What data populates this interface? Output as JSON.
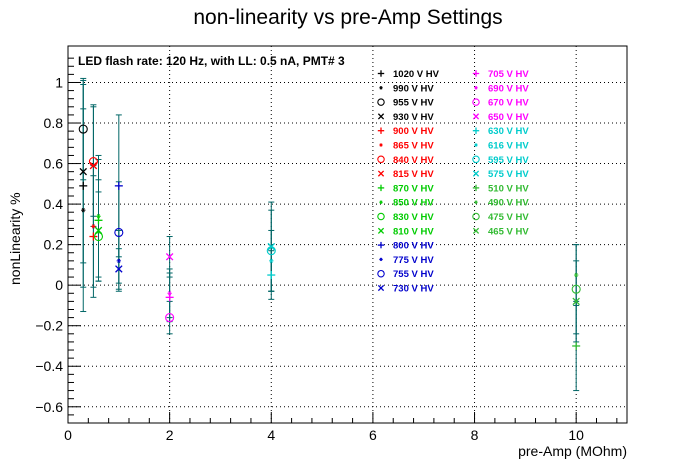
{
  "chart_data": {
    "type": "scatter",
    "title": "non-linearity vs pre-Amp Settings",
    "xlabel": "pre-Amp (MOhm)",
    "ylabel": "nonLinearity %",
    "xlim": [
      0,
      11
    ],
    "ylim": [
      -0.68,
      1.18
    ],
    "x_ticks": [
      0,
      2,
      4,
      6,
      8,
      10
    ],
    "y_ticks": [
      -0.6,
      -0.4,
      -0.2,
      0,
      0.2,
      0.4,
      0.6,
      0.8,
      1
    ],
    "x_tick_labels": [
      "0",
      "2",
      "4",
      "6",
      "8",
      "10"
    ],
    "y_tick_labels": [
      "−0.6",
      "−0.4",
      "−0.2",
      "0",
      "0.2",
      "0.4",
      "0.6",
      "0.8",
      "1"
    ],
    "grid": true,
    "annotation": "LED flash rate: 120 Hz, with LL: 0.5 nA, PMT# 3",
    "legend_position": "top-right",
    "colors": {
      "black": "#000000",
      "red": "#ff0000",
      "green": "#00cc00",
      "blue": "#0000cc",
      "magenta": "#ff00ff",
      "cyan": "#00cccc",
      "lightgreen": "#33bb33",
      "error_bar": "#006666"
    },
    "series": [
      {
        "name": "1020 V HV",
        "color": "#000000",
        "marker": "plus"
      },
      {
        "name": "990 V HV",
        "color": "#000000",
        "marker": "star"
      },
      {
        "name": "955 V HV",
        "color": "#000000",
        "marker": "circle"
      },
      {
        "name": "930 V HV",
        "color": "#000000",
        "marker": "cross"
      },
      {
        "name": "900 V HV",
        "color": "#ff0000",
        "marker": "plus"
      },
      {
        "name": "865 V HV",
        "color": "#ff0000",
        "marker": "star"
      },
      {
        "name": "840 V HV",
        "color": "#ff0000",
        "marker": "circle"
      },
      {
        "name": "815 V HV",
        "color": "#ff0000",
        "marker": "cross"
      },
      {
        "name": "870 V HV",
        "color": "#00cc00",
        "marker": "plus"
      },
      {
        "name": "850 V HV",
        "color": "#00cc00",
        "marker": "star"
      },
      {
        "name": "830 V HV",
        "color": "#00cc00",
        "marker": "circle"
      },
      {
        "name": "810 V HV",
        "color": "#00cc00",
        "marker": "cross"
      },
      {
        "name": "800 V HV",
        "color": "#0000cc",
        "marker": "plus"
      },
      {
        "name": "775 V HV",
        "color": "#0000cc",
        "marker": "star"
      },
      {
        "name": "755 V HV",
        "color": "#0000cc",
        "marker": "circle"
      },
      {
        "name": "730 V HV",
        "color": "#0000cc",
        "marker": "cross"
      },
      {
        "name": "705 V HV",
        "color": "#ff00ff",
        "marker": "plus"
      },
      {
        "name": "690 V HV",
        "color": "#ff00ff",
        "marker": "star"
      },
      {
        "name": "670 V HV",
        "color": "#ff00ff",
        "marker": "circle"
      },
      {
        "name": "650 V HV",
        "color": "#ff00ff",
        "marker": "cross"
      },
      {
        "name": "630 V HV",
        "color": "#00cccc",
        "marker": "plus"
      },
      {
        "name": "616 V HV",
        "color": "#00cccc",
        "marker": "star"
      },
      {
        "name": "595 V HV",
        "color": "#00cccc",
        "marker": "circle"
      },
      {
        "name": "575 V HV",
        "color": "#00cccc",
        "marker": "cross"
      },
      {
        "name": "510 V HV",
        "color": "#33bb33",
        "marker": "plus"
      },
      {
        "name": "490 V HV",
        "color": "#33bb33",
        "marker": "star"
      },
      {
        "name": "475 V HV",
        "color": "#33bb33",
        "marker": "circle"
      },
      {
        "name": "465 V HV",
        "color": "#33bb33",
        "marker": "cross"
      }
    ],
    "points": [
      {
        "series": "1020 V HV",
        "x": 0.3,
        "y": 0.49,
        "err": 0.5
      },
      {
        "series": "990 V HV",
        "x": 0.3,
        "y": 0.37,
        "err": 0.5
      },
      {
        "series": "955 V HV",
        "x": 0.3,
        "y": 0.77,
        "err": 0.25
      },
      {
        "series": "930 V HV",
        "x": 0.3,
        "y": 0.56,
        "err": 0.45
      },
      {
        "series": "900 V HV",
        "x": 0.5,
        "y": 0.24,
        "err": 0.3
      },
      {
        "series": "865 V HV",
        "x": 0.5,
        "y": 0.29,
        "err": 0.3
      },
      {
        "series": "840 V HV",
        "x": 0.5,
        "y": 0.61,
        "err": 0.27
      },
      {
        "series": "815 V HV",
        "x": 0.5,
        "y": 0.59,
        "err": 0.3
      },
      {
        "series": "870 V HV",
        "x": 0.6,
        "y": 0.32,
        "err": 0.3
      },
      {
        "series": "850 V HV",
        "x": 0.6,
        "y": 0.34,
        "err": 0.3
      },
      {
        "series": "830 V HV",
        "x": 0.6,
        "y": 0.24,
        "err": 0.22
      },
      {
        "series": "810 V HV",
        "x": 0.6,
        "y": 0.27,
        "err": 0.25
      },
      {
        "series": "800 V HV",
        "x": 1.0,
        "y": 0.49,
        "err": 0.35
      },
      {
        "series": "775 V HV",
        "x": 1.0,
        "y": 0.12,
        "err": 0.15
      },
      {
        "series": "755 V HV",
        "x": 1.0,
        "y": 0.26,
        "err": 0.25
      },
      {
        "series": "730 V HV",
        "x": 1.0,
        "y": 0.08,
        "err": 0.1
      },
      {
        "series": "705 V HV",
        "x": 2.0,
        "y": -0.06,
        "err": 0.12
      },
      {
        "series": "690 V HV",
        "x": 2.0,
        "y": -0.04,
        "err": 0.12
      },
      {
        "series": "670 V HV",
        "x": 2.0,
        "y": -0.16,
        "err": 0.08
      },
      {
        "series": "650 V HV",
        "x": 2.0,
        "y": 0.14,
        "err": 0.1
      },
      {
        "series": "630 V HV",
        "x": 4.0,
        "y": 0.05,
        "err": 0.12
      },
      {
        "series": "616 V HV",
        "x": 4.0,
        "y": 0.12,
        "err": 0.15
      },
      {
        "series": "595 V HV",
        "x": 4.0,
        "y": 0.17,
        "err": 0.2
      },
      {
        "series": "575 V HV",
        "x": 4.0,
        "y": 0.19,
        "err": 0.22
      },
      {
        "series": "510 V HV",
        "x": 10.0,
        "y": -0.3,
        "err": 0.22
      },
      {
        "series": "490 V HV",
        "x": 10.0,
        "y": 0.05,
        "err": 0.15
      },
      {
        "series": "475 V HV",
        "x": 10.0,
        "y": -0.02,
        "err": 0.22
      },
      {
        "series": "465 V HV",
        "x": 10.0,
        "y": -0.08,
        "err": 0.2
      }
    ]
  }
}
